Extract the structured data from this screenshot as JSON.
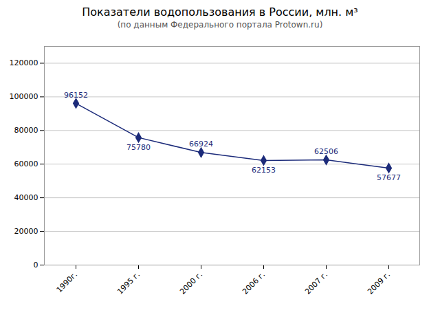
{
  "chart_data": {
    "type": "line",
    "title": "Показатели водопользования в России, млн. м³",
    "subtitle": "(по данным Федерального портала Protown.ru)",
    "categories": [
      "1990г.",
      "1995 г.",
      "2000 г.",
      "2006 г.",
      "2007 г.",
      "2009 г."
    ],
    "values": [
      96152,
      75780,
      66924,
      62153,
      62506,
      57677
    ],
    "ylim": [
      0,
      130000
    ],
    "yticks": [
      0,
      20000,
      40000,
      60000,
      80000,
      100000,
      120000
    ],
    "grid": true,
    "color": "#1C2B7A",
    "marker": "diamond",
    "data_labels": true
  }
}
